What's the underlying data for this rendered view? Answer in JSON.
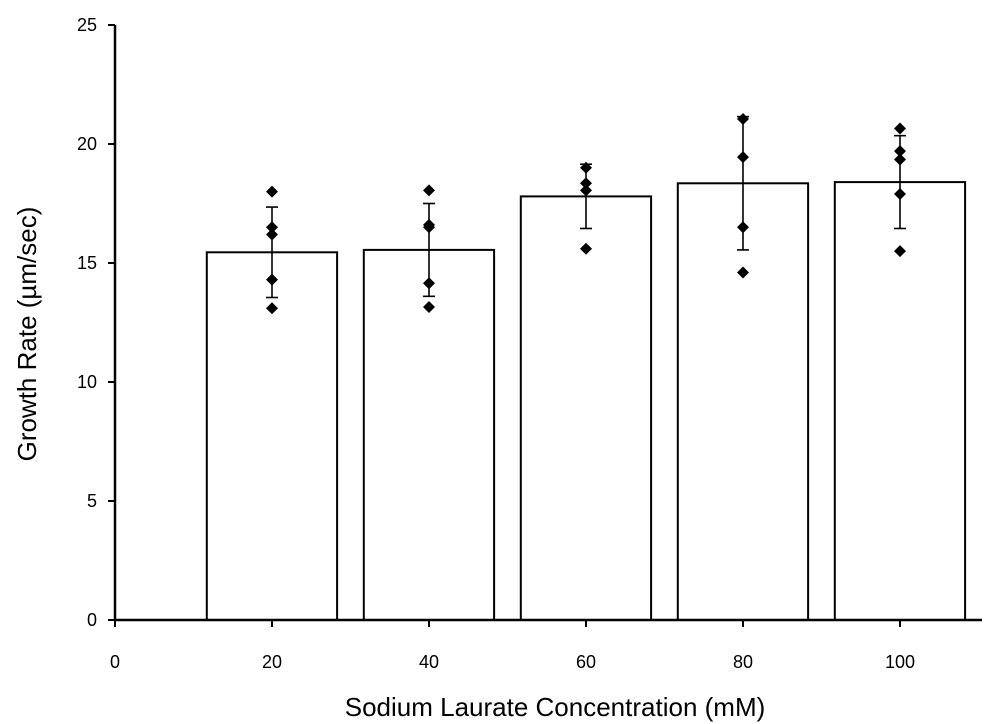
{
  "chart_data": {
    "type": "bar",
    "title": "",
    "xlabel": "Sodium Laurate Concentration (mM)",
    "ylabel": "Growth Rate (µm/sec)",
    "xlim": [
      0,
      110
    ],
    "ylim": [
      0,
      25
    ],
    "x_ticks": [
      0,
      20,
      40,
      60,
      80,
      100
    ],
    "y_ticks": [
      0,
      5,
      10,
      15,
      20,
      25
    ],
    "grid": false,
    "legend": "none",
    "bar_width_data_units": 16.6,
    "series": [
      {
        "x": [
          20,
          40,
          60,
          80,
          100
        ],
        "values": [
          15.45,
          15.55,
          17.8,
          18.35,
          18.4
        ],
        "error": [
          1.9,
          1.95,
          1.35,
          2.8,
          1.95
        ]
      }
    ],
    "points": [
      {
        "x": 20,
        "y": [
          18.0,
          16.5,
          16.2,
          14.3,
          13.1
        ]
      },
      {
        "x": 40,
        "y": [
          18.05,
          16.6,
          16.5,
          14.15,
          13.15
        ]
      },
      {
        "x": 60,
        "y": [
          19.0,
          18.35,
          18.05,
          15.6
        ]
      },
      {
        "x": 80,
        "y": [
          21.05,
          19.45,
          16.5,
          14.6
        ]
      },
      {
        "x": 100,
        "y": [
          20.65,
          19.7,
          19.35,
          17.9,
          15.5
        ]
      }
    ],
    "colors": {
      "bar_fill": "#ffffff",
      "bar_stroke": "#000000",
      "marker": "#000000",
      "axis": "#000000"
    }
  }
}
